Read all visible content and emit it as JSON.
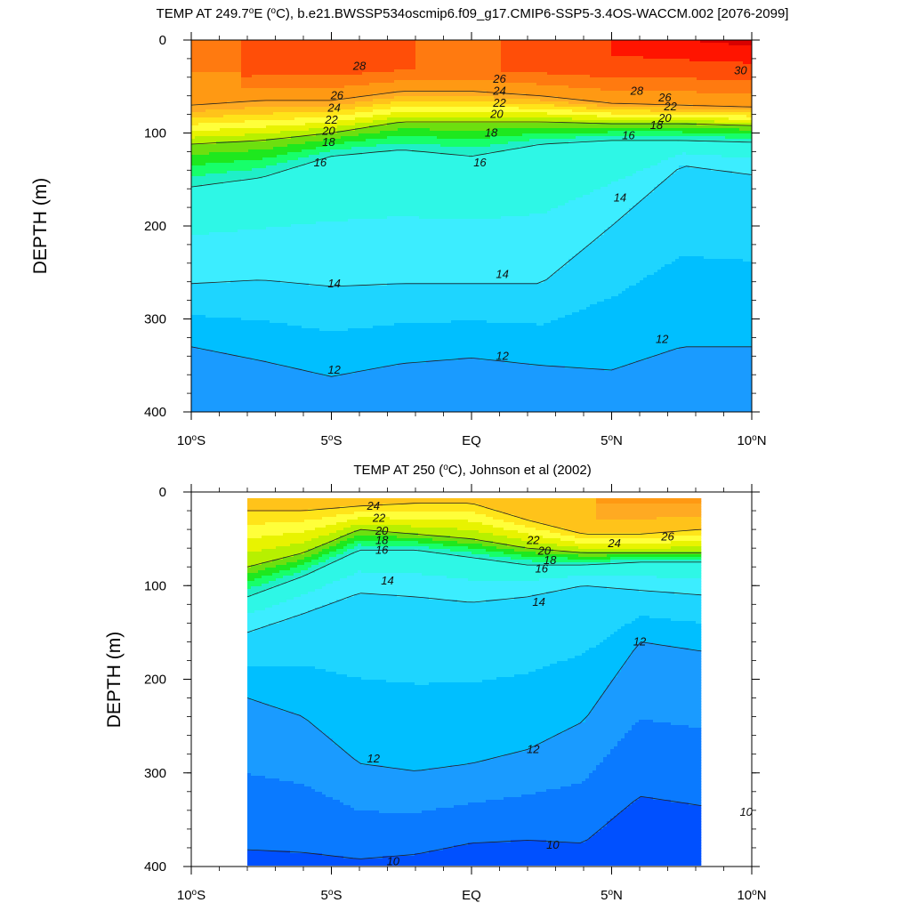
{
  "chart_data": [
    {
      "type": "contour",
      "title_prefix": "TEMP AT 249.7",
      "title_sup": "o",
      "title_mid": "E (",
      "title_sup2": "o",
      "title_suffix": "C), b.e21.BWSSP534oscmip6.f09_g17.CMIP6-SSP5-3.4OS-WACCM.002 [2076-2099]",
      "ylabel": "DEPTH (m)",
      "xlim": [
        -10,
        10
      ],
      "ylim": [
        0,
        400
      ],
      "data_x_range": [
        -10,
        10
      ],
      "xticks": [
        {
          "value": -10,
          "num": "10",
          "hemi": "S"
        },
        {
          "value": -5,
          "num": "5",
          "hemi": "S"
        },
        {
          "value": 0,
          "num": "EQ",
          "hemi": ""
        },
        {
          "value": 5,
          "num": "5",
          "hemi": "N"
        },
        {
          "value": 10,
          "num": "10",
          "hemi": "N"
        }
      ],
      "yticks": [
        0,
        100,
        200,
        300,
        400
      ],
      "contour_levels": [
        10,
        12,
        14,
        16,
        18,
        20,
        22,
        24,
        26,
        28,
        30
      ],
      "isotherm_depths": {
        "lat": [
          -10,
          -7.5,
          -5,
          -2.5,
          0,
          2.5,
          5,
          7.5,
          10
        ],
        "t26": [
          70,
          65,
          65,
          55,
          55,
          60,
          68,
          70,
          72
        ],
        "t20": [
          112,
          108,
          100,
          88,
          88,
          88,
          90,
          90,
          92
        ],
        "t16": [
          158,
          148,
          125,
          118,
          125,
          112,
          108,
          108,
          110
        ],
        "t14": [
          262,
          258,
          265,
          262,
          262,
          262,
          200,
          135,
          145
        ],
        "t12": [
          330,
          345,
          362,
          348,
          342,
          350,
          355,
          330,
          330
        ]
      },
      "labels": [
        {
          "text": "28",
          "lon": -4.0,
          "depth": 28
        },
        {
          "text": "26",
          "lon": 1.0,
          "depth": 42
        },
        {
          "text": "24",
          "lon": 1.0,
          "depth": 55
        },
        {
          "text": "22",
          "lon": 1.0,
          "depth": 68
        },
        {
          "text": "20",
          "lon": 0.9,
          "depth": 80
        },
        {
          "text": "18",
          "lon": 0.7,
          "depth": 100
        },
        {
          "text": "16",
          "lon": 0.3,
          "depth": 132
        },
        {
          "text": "26",
          "lon": -4.8,
          "depth": 60
        },
        {
          "text": "24",
          "lon": -4.9,
          "depth": 73
        },
        {
          "text": "22",
          "lon": -5.0,
          "depth": 86
        },
        {
          "text": "20",
          "lon": -5.1,
          "depth": 98
        },
        {
          "text": "18",
          "lon": -5.1,
          "depth": 110
        },
        {
          "text": "16",
          "lon": -5.4,
          "depth": 132
        },
        {
          "text": "28",
          "lon": 5.9,
          "depth": 55
        },
        {
          "text": "30",
          "lon": 9.6,
          "depth": 33
        },
        {
          "text": "26",
          "lon": 6.9,
          "depth": 62
        },
        {
          "text": "22",
          "lon": 7.1,
          "depth": 72
        },
        {
          "text": "20",
          "lon": 6.9,
          "depth": 84
        },
        {
          "text": "18",
          "lon": 6.6,
          "depth": 92
        },
        {
          "text": "16",
          "lon": 5.6,
          "depth": 103
        },
        {
          "text": "14",
          "lon": 5.3,
          "depth": 170
        },
        {
          "text": "14",
          "lon": -4.9,
          "depth": 262
        },
        {
          "text": "14",
          "lon": 1.1,
          "depth": 252
        },
        {
          "text": "12",
          "lon": -4.9,
          "depth": 355
        },
        {
          "text": "12",
          "lon": 1.1,
          "depth": 340
        },
        {
          "text": "12",
          "lon": 6.8,
          "depth": 322
        }
      ]
    },
    {
      "type": "contour",
      "title_prefix": "TEMP AT 250 (",
      "title_sup": "o",
      "title_suffix": "C), Johnson et al (2002)",
      "ylabel": "DEPTH (m)",
      "xlim": [
        -10,
        10
      ],
      "ylim": [
        0,
        400
      ],
      "data_x_range": [
        -8,
        8.2
      ],
      "xticks": [
        {
          "value": -10,
          "num": "10",
          "hemi": "S"
        },
        {
          "value": -5,
          "num": "5",
          "hemi": "S"
        },
        {
          "value": 0,
          "num": "EQ",
          "hemi": ""
        },
        {
          "value": 5,
          "num": "5",
          "hemi": "N"
        },
        {
          "value": 10,
          "num": "10",
          "hemi": "N"
        }
      ],
      "yticks": [
        0,
        100,
        200,
        300,
        400
      ],
      "contour_levels": [
        10,
        12,
        14,
        16,
        18,
        20,
        22,
        24,
        26
      ],
      "isotherm_depths": {
        "lat": [
          -8,
          -6,
          -4,
          -2,
          0,
          2,
          4,
          6,
          8.2
        ],
        "t24": [
          20,
          20,
          15,
          12,
          12,
          30,
          45,
          45,
          40
        ],
        "t20": [
          80,
          65,
          40,
          45,
          50,
          60,
          65,
          65,
          65
        ],
        "t16": [
          112,
          90,
          62,
          62,
          70,
          78,
          78,
          75,
          75
        ],
        "t14": [
          150,
          130,
          108,
          112,
          118,
          112,
          100,
          105,
          110
        ],
        "t12": [
          220,
          240,
          290,
          298,
          290,
          275,
          245,
          160,
          170
        ],
        "t10": [
          382,
          385,
          392,
          387,
          375,
          372,
          375,
          325,
          335
        ]
      },
      "labels": [
        {
          "text": "24",
          "lon": -3.5,
          "depth": 15
        },
        {
          "text": "22",
          "lon": -3.3,
          "depth": 28
        },
        {
          "text": "20",
          "lon": -3.2,
          "depth": 42
        },
        {
          "text": "18",
          "lon": -3.2,
          "depth": 52
        },
        {
          "text": "16",
          "lon": -3.2,
          "depth": 62
        },
        {
          "text": "14",
          "lon": -3.0,
          "depth": 95
        },
        {
          "text": "22",
          "lon": 2.2,
          "depth": 52
        },
        {
          "text": "20",
          "lon": 2.6,
          "depth": 63
        },
        {
          "text": "18",
          "lon": 2.8,
          "depth": 73
        },
        {
          "text": "16",
          "lon": 2.5,
          "depth": 82
        },
        {
          "text": "24",
          "lon": 5.1,
          "depth": 55
        },
        {
          "text": "26",
          "lon": 7.0,
          "depth": 48
        },
        {
          "text": "14",
          "lon": 2.4,
          "depth": 118
        },
        {
          "text": "12",
          "lon": 6.0,
          "depth": 160
        },
        {
          "text": "12",
          "lon": -3.5,
          "depth": 285
        },
        {
          "text": "12",
          "lon": 2.2,
          "depth": 275
        },
        {
          "text": "10",
          "lon": -2.8,
          "depth": 395
        },
        {
          "text": "10",
          "lon": 2.9,
          "depth": 377
        },
        {
          "text": "10",
          "lon": 9.8,
          "depth": 342
        }
      ]
    }
  ]
}
